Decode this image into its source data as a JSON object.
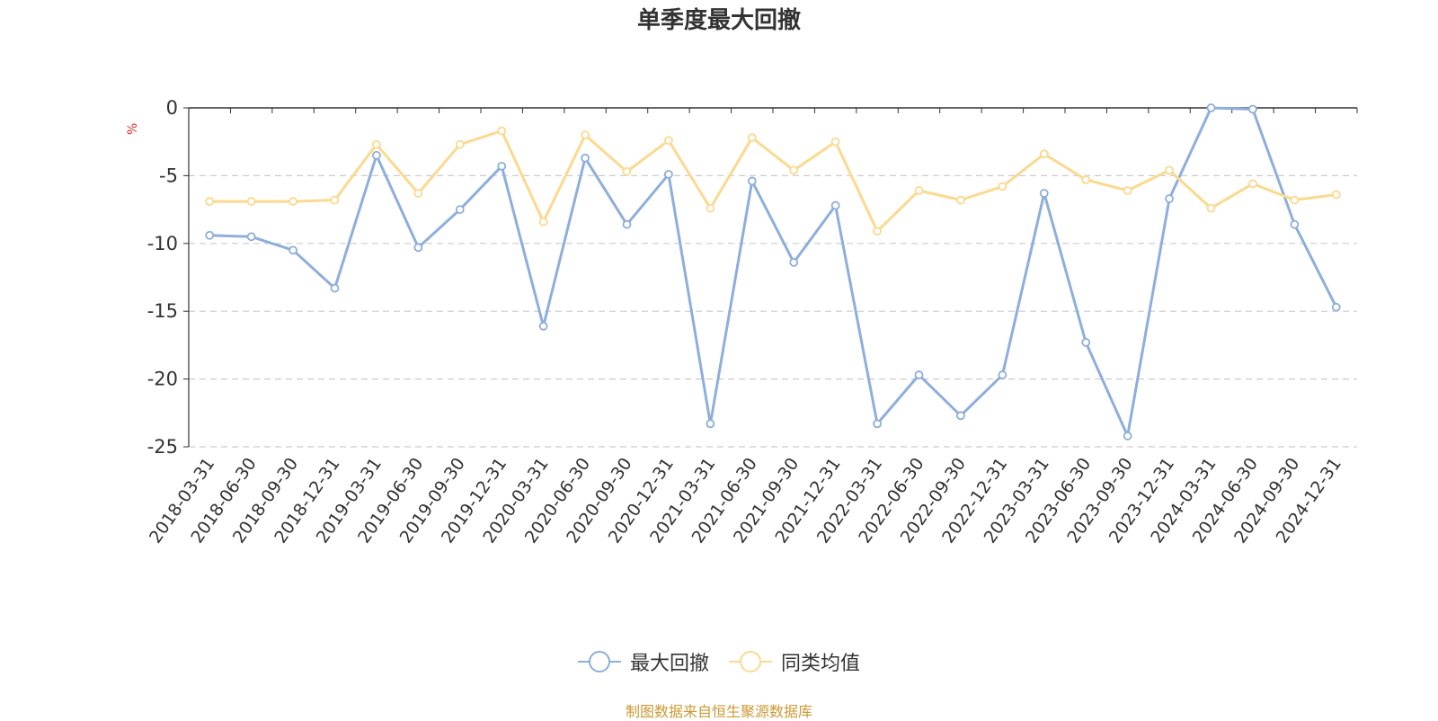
{
  "chart_data": {
    "type": "line",
    "title": "单季度最大回撤",
    "ylabel": "%",
    "ylim": [
      -25,
      0
    ],
    "yticks": [
      0,
      -5,
      -10,
      -15,
      -20,
      -25
    ],
    "grid": true,
    "legend_position": "bottom-center",
    "categories": [
      "2018-03-31",
      "2018-06-30",
      "2018-09-30",
      "2018-12-31",
      "2019-03-31",
      "2019-06-30",
      "2019-09-30",
      "2019-12-31",
      "2020-03-31",
      "2020-06-30",
      "2020-09-30",
      "2020-12-31",
      "2021-03-31",
      "2021-06-30",
      "2021-09-30",
      "2021-12-31",
      "2022-03-31",
      "2022-06-30",
      "2022-09-30",
      "2022-12-31",
      "2023-03-31",
      "2023-06-30",
      "2023-09-30",
      "2023-12-31",
      "2024-03-31",
      "2024-06-30",
      "2024-09-30",
      "2024-12-31"
    ],
    "series": [
      {
        "name": "最大回撤",
        "color": "#8eaedb",
        "values": [
          -9.4,
          -9.5,
          -10.5,
          -13.3,
          -3.5,
          -10.3,
          -7.5,
          -4.3,
          -16.1,
          -3.7,
          -8.6,
          -4.9,
          -23.3,
          -5.4,
          -11.4,
          -7.2,
          -23.3,
          -19.7,
          -22.7,
          -19.7,
          -6.3,
          -17.3,
          -24.2,
          -6.7,
          0,
          -0.1,
          -8.6,
          -14.7
        ]
      },
      {
        "name": "同类均值",
        "color": "#fbd98f",
        "values": [
          -6.9,
          -6.9,
          -6.9,
          -6.8,
          -2.7,
          -6.3,
          -2.7,
          -1.7,
          -8.4,
          -2.0,
          -4.7,
          -2.4,
          -7.4,
          -2.2,
          -4.6,
          -2.5,
          -9.1,
          -6.1,
          -6.8,
          -5.8,
          -3.4,
          -5.3,
          -6.1,
          -4.6,
          -7.4,
          -5.6,
          -6.8,
          -6.4
        ]
      }
    ]
  },
  "footer": {
    "source": "制图数据来自恒生聚源数据库"
  }
}
